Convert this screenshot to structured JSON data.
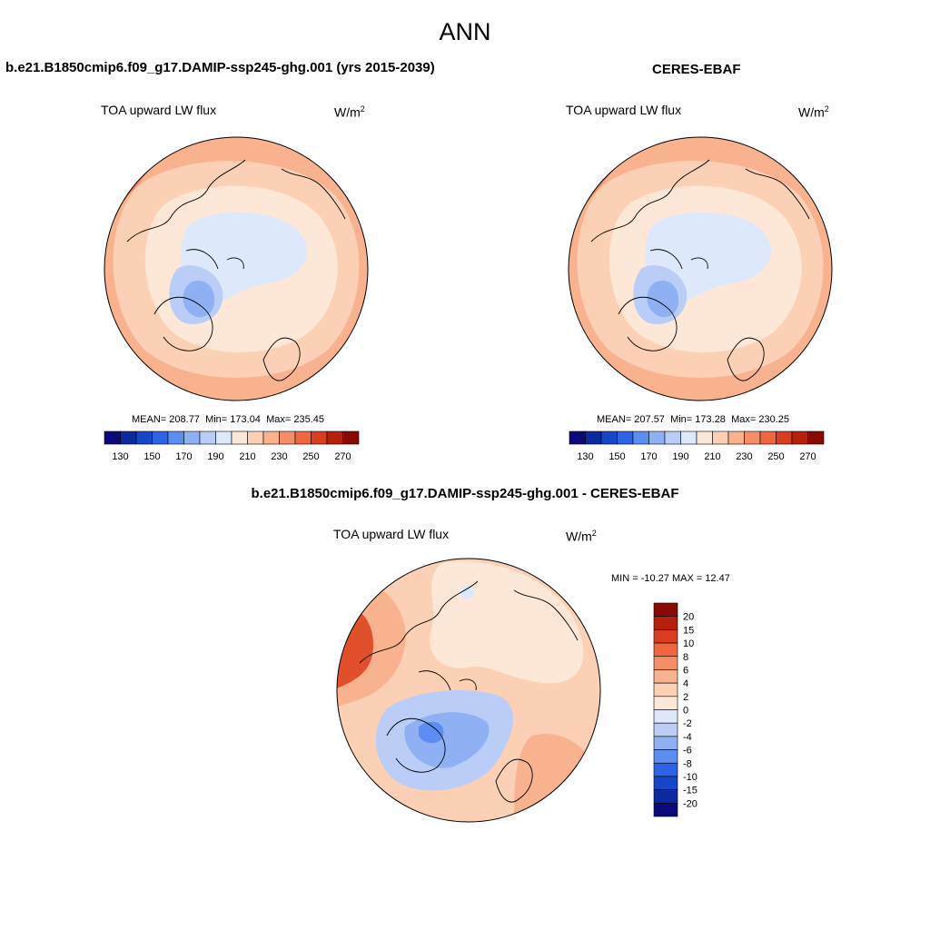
{
  "main_title": "ANN",
  "panels": {
    "model": {
      "case_title": "b.e21.B1850cmip6.f09_g17.DAMIP-ssp245-ghg.001 (yrs 2015-2039)",
      "variable": "TOA upward LW flux",
      "units": "W/m",
      "units_sup": "2",
      "stats": {
        "mean_label": "MEAN=",
        "mean": "208.77",
        "min_label": "Min=",
        "min": "173.04",
        "max_label": "Max=",
        "max": "235.45"
      }
    },
    "obs": {
      "case_title": "CERES-EBAF",
      "variable": "TOA upward LW flux",
      "units": "W/m",
      "units_sup": "2",
      "stats": {
        "mean_label": "MEAN=",
        "mean": "207.57",
        "min_label": "Min=",
        "min": "173.28",
        "max_label": "Max=",
        "max": "230.25"
      }
    },
    "diff": {
      "case_title": "b.e21.B1850cmip6.f09_g17.DAMIP-ssp245-ghg.001 - CERES-EBAF",
      "variable": "TOA upward LW flux",
      "units": "W/m",
      "units_sup": "2",
      "stats_text": "MIN = -10.27 MAX =  12.47"
    }
  },
  "abs_colorbar": {
    "colors": [
      "#0a0a7a",
      "#0b2aa0",
      "#1646c8",
      "#2d63e6",
      "#5b8ef0",
      "#8fb0f2",
      "#b9cdf6",
      "#dde8fb",
      "#fde8d8",
      "#fbd0b5",
      "#f8b28e",
      "#f58e65",
      "#f0663e",
      "#d83d1e",
      "#b52008",
      "#8a0a02"
    ],
    "ticks": [
      "130",
      "150",
      "170",
      "190",
      "210",
      "230",
      "250",
      "270"
    ]
  },
  "diff_colorbar": {
    "colors": [
      "#8a0a02",
      "#b52008",
      "#d83d1e",
      "#f0663e",
      "#f58e65",
      "#f8b28e",
      "#fbd0b5",
      "#fde8d8",
      "#dde8fb",
      "#b9cdf6",
      "#8fb0f2",
      "#5b8ef0",
      "#2d63e6",
      "#1646c8",
      "#0b2aa0",
      "#0a0a7a"
    ],
    "ticks": [
      "20",
      "15",
      "10",
      "8",
      "6",
      "4",
      "2",
      "0",
      "-2",
      "-4",
      "-6",
      "-8",
      "-10",
      "-15",
      "-20"
    ]
  },
  "map_colors": {
    "warm_dark": "#f2875f",
    "warm": "#f8b28e",
    "warm_light": "#fbd0b5",
    "neutral": "#fde8d8",
    "cool_light": "#dde8fb",
    "cool": "#b9cdf6",
    "cool_mid": "#8fb0f2",
    "cool_dark": "#5b8ef0",
    "hot": "#e0502a"
  }
}
